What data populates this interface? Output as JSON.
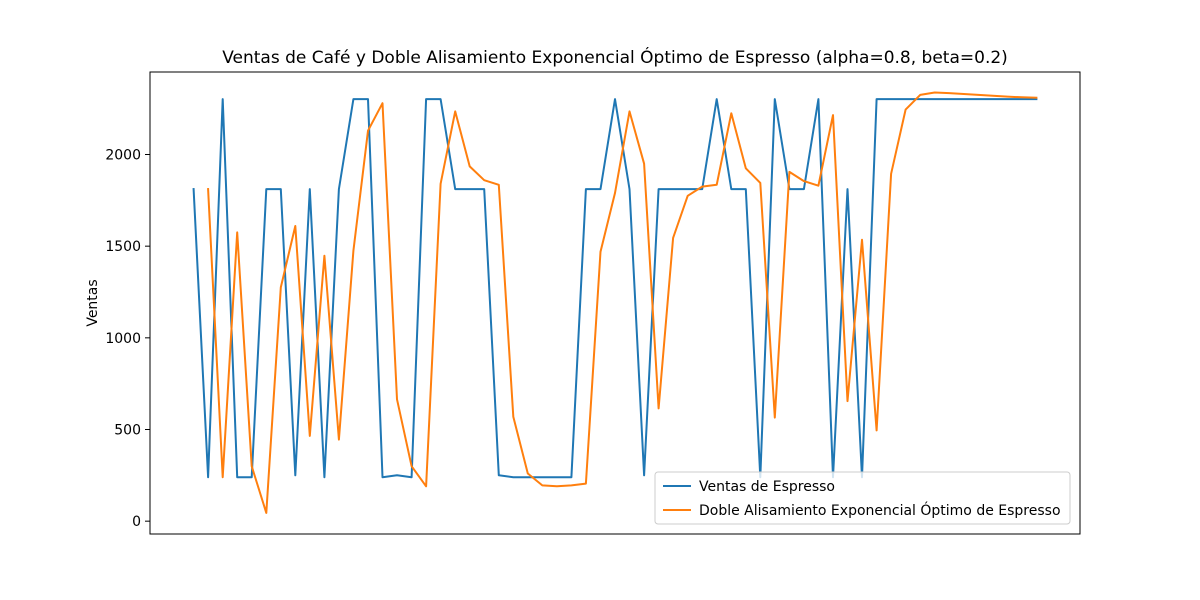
{
  "chart_data": {
    "type": "line",
    "title": "Ventas de Café y Doble Alisamiento Exponencial Óptimo de Espresso (alpha=0.8, beta=0.2)",
    "xlabel": "",
    "ylabel": "Ventas",
    "ylim": [
      -70,
      2450
    ],
    "xlim": [
      -3,
      61
    ],
    "yticks": [
      0,
      500,
      1000,
      1500,
      2000
    ],
    "x_tick_labels_visible": false,
    "grid": false,
    "legend_position": "lower-right",
    "series": [
      {
        "name": "Ventas de Espresso",
        "color": "#1f77b4",
        "start_index": 0,
        "values": [
          1811,
          240,
          2302,
          240,
          240,
          1811,
          1811,
          250,
          1811,
          240,
          1811,
          2302,
          2302,
          240,
          250,
          240,
          2302,
          2302,
          1811,
          1811,
          1811,
          250,
          240,
          240,
          240,
          240,
          240,
          1811,
          1811,
          2302,
          1811,
          250,
          1811,
          1811,
          1811,
          1811,
          2302,
          1811,
          1811,
          240,
          2302,
          1811,
          1811,
          2302,
          240,
          1811,
          240,
          2302,
          2302,
          2302,
          2302,
          2302,
          2302,
          2302,
          2302,
          2302,
          2302,
          2302,
          2302
        ]
      },
      {
        "name": "Doble Alisamiento Exponencial Óptimo de Espresso",
        "color": "#ff7f0e",
        "start_index": 1,
        "values": [
          1811,
          240,
          1575,
          300,
          45,
          1275,
          1610,
          465,
          1448,
          445,
          1475,
          2130,
          2280,
          665,
          300,
          190,
          1840,
          2235,
          1935,
          1860,
          1835,
          570,
          260,
          195,
          190,
          195,
          205,
          1470,
          1790,
          2235,
          1950,
          615,
          1545,
          1775,
          1825,
          1835,
          2225,
          1925,
          1845,
          565,
          1905,
          1855,
          1830,
          2215,
          655,
          1535,
          495,
          1895,
          2245,
          2325,
          2338,
          2335,
          2330,
          2325,
          2320,
          2316,
          2312,
          2310
        ]
      }
    ]
  }
}
